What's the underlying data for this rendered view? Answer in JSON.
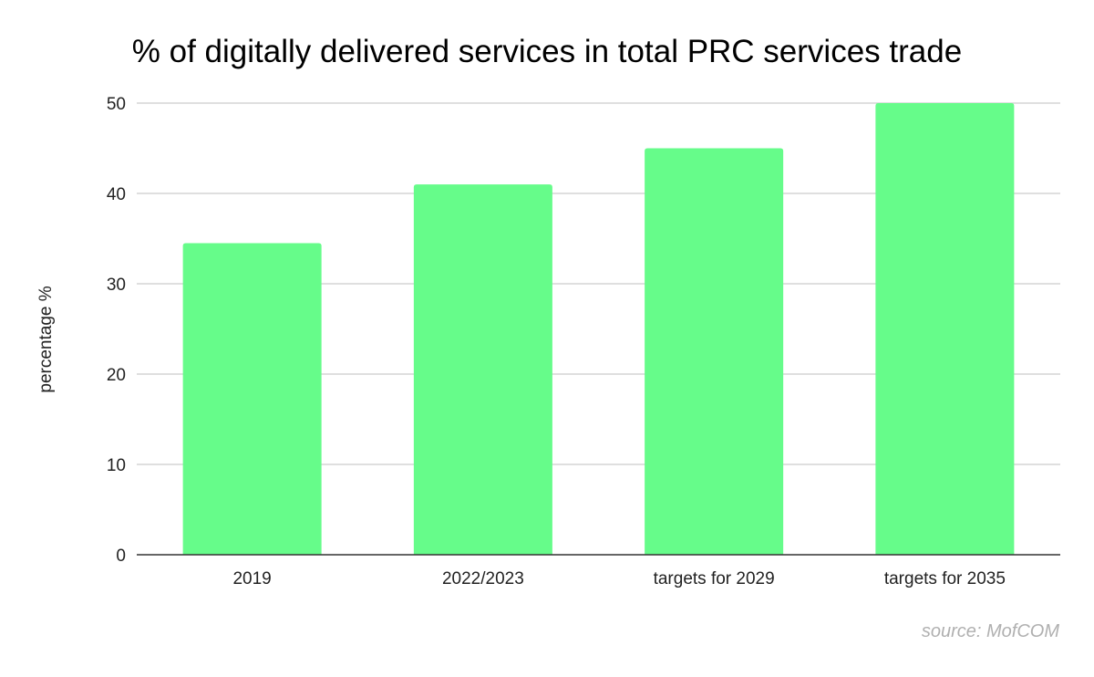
{
  "chart_data": {
    "type": "bar",
    "title": "% of digitally delivered services in total PRC services trade",
    "xlabel": "",
    "ylabel": "percentage %",
    "categories": [
      "2019",
      "2022/2023",
      "targets for 2029",
      "targets for 2035"
    ],
    "values": [
      34.5,
      41,
      45,
      50
    ],
    "ylim": [
      0,
      50
    ],
    "yticks": [
      0,
      10,
      20,
      30,
      40,
      50
    ],
    "grid": true,
    "legend": "none",
    "bar_color": "#66fc8a",
    "annotation": "source: MofCOM"
  }
}
